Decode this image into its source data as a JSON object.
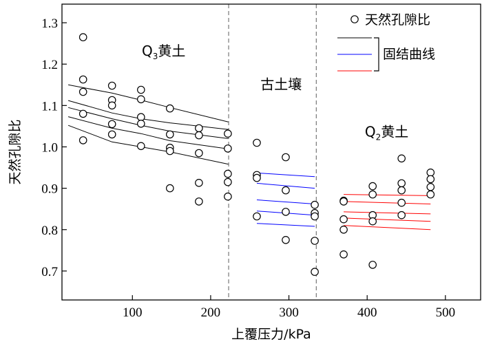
{
  "chart_data": {
    "type": "scatter",
    "xlabel": "上覆压力/kPa",
    "ylabel": "天然孔隙比",
    "xlim": [
      10,
      545
    ],
    "ylim": [
      0.63,
      1.345
    ],
    "x_ticks": [
      100,
      200,
      300,
      400,
      500
    ],
    "y_ticks": [
      0.7,
      0.8,
      0.9,
      1.0,
      1.1,
      1.2,
      1.3
    ],
    "x_tick_labels": [
      "100",
      "200",
      "300",
      "400",
      "500"
    ],
    "y_tick_labels": [
      "0.7",
      "0.8",
      "0.9",
      "1.0",
      "1.1",
      "1.2",
      "1.3"
    ],
    "grid": false,
    "boundaries": [
      223,
      335
    ],
    "regions": [
      {
        "key": "q3",
        "main": "Q",
        "sub": "3",
        "rest": "黄土",
        "x": 140,
        "y": 1.22
      },
      {
        "key": "gtr",
        "main": "古土壤",
        "sub": "",
        "rest": "",
        "x": 290,
        "y": 1.14
      },
      {
        "key": "q2",
        "main": "Q",
        "sub": "2",
        "rest": "黄土",
        "x": 425,
        "y": 1.025
      }
    ],
    "legend": {
      "placement": "top-right",
      "points_label": "天然孔隙比",
      "curves_label": "固结曲线",
      "curve_colors": [
        "#000000",
        "#0000ff",
        "#ff0000"
      ]
    },
    "series": [
      {
        "name": "天然孔隙比",
        "points": [
          [
            37,
            1.265
          ],
          [
            37,
            1.163
          ],
          [
            37,
            1.133
          ],
          [
            37,
            1.08
          ],
          [
            37,
            1.016
          ],
          [
            74,
            1.148
          ],
          [
            74,
            1.113
          ],
          [
            74,
            1.1
          ],
          [
            74,
            1.055
          ],
          [
            74,
            1.03
          ],
          [
            111,
            1.138
          ],
          [
            111,
            1.115
          ],
          [
            111,
            1.072
          ],
          [
            111,
            1.056
          ],
          [
            111,
            1.002
          ],
          [
            148,
            1.093
          ],
          [
            148,
            1.03
          ],
          [
            148,
            0.998
          ],
          [
            148,
            0.99
          ],
          [
            148,
            0.9
          ],
          [
            185,
            1.045
          ],
          [
            185,
            1.028
          ],
          [
            185,
            0.985
          ],
          [
            185,
            0.913
          ],
          [
            185,
            0.868
          ],
          [
            222,
            1.032
          ],
          [
            222,
            0.996
          ],
          [
            222,
            0.935
          ],
          [
            222,
            0.915
          ],
          [
            222,
            0.88
          ],
          [
            259,
            1.01
          ],
          [
            259,
            0.932
          ],
          [
            259,
            0.925
          ],
          [
            259,
            0.832
          ],
          [
            296,
            0.975
          ],
          [
            296,
            0.895
          ],
          [
            296,
            0.843
          ],
          [
            296,
            0.775
          ],
          [
            333,
            0.86
          ],
          [
            333,
            0.84
          ],
          [
            333,
            0.832
          ],
          [
            333,
            0.773
          ],
          [
            333,
            0.698
          ],
          [
            370,
            0.87
          ],
          [
            370,
            0.868
          ],
          [
            370,
            0.825
          ],
          [
            370,
            0.8
          ],
          [
            370,
            0.74
          ],
          [
            407,
            0.905
          ],
          [
            407,
            0.885
          ],
          [
            407,
            0.835
          ],
          [
            407,
            0.82
          ],
          [
            407,
            0.715
          ],
          [
            444,
            0.972
          ],
          [
            444,
            0.912
          ],
          [
            444,
            0.895
          ],
          [
            444,
            0.865
          ],
          [
            444,
            0.835
          ],
          [
            481,
            0.938
          ],
          [
            481,
            0.922
          ],
          [
            481,
            0.903
          ],
          [
            481,
            0.885
          ]
        ]
      }
    ],
    "curves": [
      {
        "color": "#000000",
        "points": [
          [
            18,
            1.15
          ],
          [
            74,
            1.13
          ],
          [
            111,
            1.113
          ],
          [
            148,
            1.095
          ],
          [
            223,
            1.06
          ]
        ]
      },
      {
        "color": "#000000",
        "points": [
          [
            18,
            1.112
          ],
          [
            74,
            1.082
          ],
          [
            111,
            1.068
          ],
          [
            148,
            1.058
          ],
          [
            223,
            1.042
          ]
        ]
      },
      {
        "color": "#000000",
        "points": [
          [
            18,
            1.095
          ],
          [
            74,
            1.068
          ],
          [
            111,
            1.052
          ],
          [
            148,
            1.038
          ],
          [
            223,
            1.02
          ]
        ]
      },
      {
        "color": "#000000",
        "points": [
          [
            18,
            1.073
          ],
          [
            74,
            1.045
          ],
          [
            111,
            1.032
          ],
          [
            148,
            1.015
          ],
          [
            223,
            0.995
          ]
        ]
      },
      {
        "color": "#000000",
        "points": [
          [
            18,
            1.052
          ],
          [
            74,
            1.012
          ],
          [
            111,
            1.0
          ],
          [
            148,
            0.988
          ],
          [
            223,
            0.958
          ]
        ]
      },
      {
        "color": "#0000ff",
        "points": [
          [
            259,
            0.937
          ],
          [
            333,
            0.928
          ]
        ]
      },
      {
        "color": "#0000ff",
        "points": [
          [
            259,
            0.912
          ],
          [
            333,
            0.9
          ]
        ]
      },
      {
        "color": "#0000ff",
        "points": [
          [
            259,
            0.872
          ],
          [
            333,
            0.862
          ]
        ]
      },
      {
        "color": "#0000ff",
        "points": [
          [
            259,
            0.845
          ],
          [
            333,
            0.835
          ]
        ]
      },
      {
        "color": "#0000ff",
        "points": [
          [
            259,
            0.815
          ],
          [
            333,
            0.808
          ]
        ]
      },
      {
        "color": "#ff0000",
        "points": [
          [
            370,
            0.885
          ],
          [
            481,
            0.882
          ]
        ]
      },
      {
        "color": "#ff0000",
        "points": [
          [
            370,
            0.868
          ],
          [
            481,
            0.862
          ]
        ]
      },
      {
        "color": "#ff0000",
        "points": [
          [
            370,
            0.843
          ],
          [
            481,
            0.838
          ]
        ]
      },
      {
        "color": "#ff0000",
        "points": [
          [
            370,
            0.828
          ],
          [
            481,
            0.82
          ]
        ]
      },
      {
        "color": "#ff0000",
        "points": [
          [
            370,
            0.81
          ],
          [
            481,
            0.8
          ]
        ]
      }
    ]
  }
}
